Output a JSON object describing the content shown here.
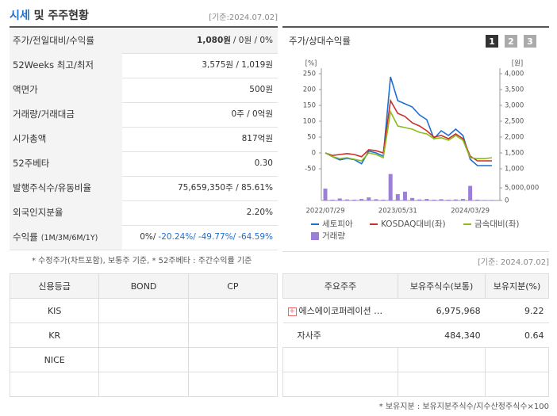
{
  "header": {
    "title_main": "시세",
    "title_rest": "및 주주현황",
    "date": "[기준:2024.07.02]"
  },
  "price_table": {
    "rows": [
      {
        "label": "주가/전일대비/수익률",
        "values": [
          "1,080원",
          "/ 0원 / 0%"
        ]
      },
      {
        "label": "52Weeks 최고/최저",
        "values": [
          "3,575원 / 1,019원"
        ]
      },
      {
        "label": "액면가",
        "values": [
          "500원"
        ]
      },
      {
        "label": "거래량/거래대금",
        "values": [
          "0주 / 0억원"
        ]
      },
      {
        "label": "시가총액",
        "values": [
          "817억원"
        ]
      },
      {
        "label": "52주베타",
        "values": [
          "0.30"
        ]
      },
      {
        "label": "발행주식수/유동비율",
        "values": [
          "75,659,350주 / 85.61%"
        ]
      },
      {
        "label": "외국인지분율",
        "values": [
          "2.20%"
        ]
      },
      {
        "label": "수익률",
        "label_note": "(1M/3M/6M/1Y)",
        "values": [
          "0%/",
          "-20.24%/",
          "-49.77%/",
          "-64.59%"
        ]
      }
    ],
    "footnote": "* 수정주가(차트포함), 보통주 기준, * 52주베타 : 주간수익률 기준"
  },
  "chart_data": {
    "type": "line",
    "title": "주가/상대수익률",
    "tabs": [
      "1",
      "2",
      "3"
    ],
    "ylabel": "[%]",
    "y2label": "[원]",
    "categories": [
      "2022/07/29",
      null,
      null,
      null,
      null,
      null,
      null,
      null,
      null,
      null,
      "2023/05/31",
      null,
      null,
      null,
      null,
      null,
      null,
      null,
      null,
      null,
      "2024/03/29",
      null,
      null,
      null
    ],
    "ylim": [
      -50,
      250
    ],
    "yticks": [
      250,
      200,
      150,
      100,
      50,
      0,
      -50
    ],
    "y2lim": [
      1000,
      4000
    ],
    "y2ticks": [
      {
        "value": 4000,
        "label": "4,000"
      },
      {
        "value": 3500,
        "label": "3,500"
      },
      {
        "value": 3000,
        "label": "3,000"
      },
      {
        "value": 2500,
        "label": "2,500"
      },
      {
        "value": 2000,
        "label": "2,000"
      },
      {
        "value": 1500,
        "label": "1,500"
      },
      {
        "value": 1000,
        "label": "1,000"
      }
    ],
    "volume_lim": [
      0,
      11000000
    ],
    "volume_ticks": [
      {
        "value": 5000000,
        "label": "5,000,000"
      },
      0
    ],
    "series": [
      {
        "name": "세토피아",
        "color": "#1f6fd1",
        "axis": "y2",
        "values": [
          1500,
          1380,
          1280,
          1330,
          1290,
          1160,
          1560,
          1500,
          1400,
          3900,
          3150,
          3050,
          2950,
          2700,
          2550,
          1950,
          2200,
          2050,
          2250,
          2050,
          1300,
          1100,
          1100,
          1100
        ]
      },
      {
        "name": "KOSDAQ대비(좌)",
        "color": "#c8302c",
        "values": [
          0,
          -8,
          -5,
          -2,
          -5,
          -12,
          10,
          7,
          0,
          165,
          125,
          115,
          95,
          85,
          70,
          50,
          55,
          45,
          60,
          45,
          -10,
          -25,
          -25,
          -25
        ]
      },
      {
        "name": "금속대비(좌)",
        "color": "#8cbc1c",
        "values": [
          0,
          -12,
          -18,
          -15,
          -20,
          -25,
          0,
          -5,
          -15,
          130,
          85,
          80,
          75,
          65,
          60,
          45,
          48,
          40,
          55,
          40,
          -15,
          -18,
          -18,
          -15
        ]
      },
      {
        "name": "거래량",
        "color": "#9c7fd6",
        "type": "bar",
        "axis": "volume",
        "values": [
          4700000,
          300000,
          800000,
          400000,
          300000,
          600000,
          1200000,
          500000,
          300000,
          10500000,
          2500000,
          3500000,
          1000000,
          400000,
          600000,
          300000,
          500000,
          300000,
          400000,
          600000,
          5800000,
          300000,
          200000,
          200000
        ]
      }
    ]
  },
  "credit_table": {
    "headers": [
      "신용등급",
      "BOND",
      "CP"
    ],
    "rows": [
      [
        "KIS",
        "",
        ""
      ],
      [
        "KR",
        "",
        ""
      ],
      [
        "NICE",
        "",
        ""
      ],
      [
        "",
        "",
        ""
      ]
    ]
  },
  "holder_table": {
    "date": "[기준: 2024.07.02]",
    "headers": [
      "주요주주",
      "보유주식수(보통)",
      "보유지분(%)"
    ],
    "rows": [
      [
        "에스에이코퍼레이션 …",
        "6,975,968",
        "9.22"
      ],
      [
        "자사주",
        "484,340",
        "0.64"
      ]
    ],
    "footnote": "* 보유지분 : 보유지분주식수/지수산정주식수×100"
  }
}
